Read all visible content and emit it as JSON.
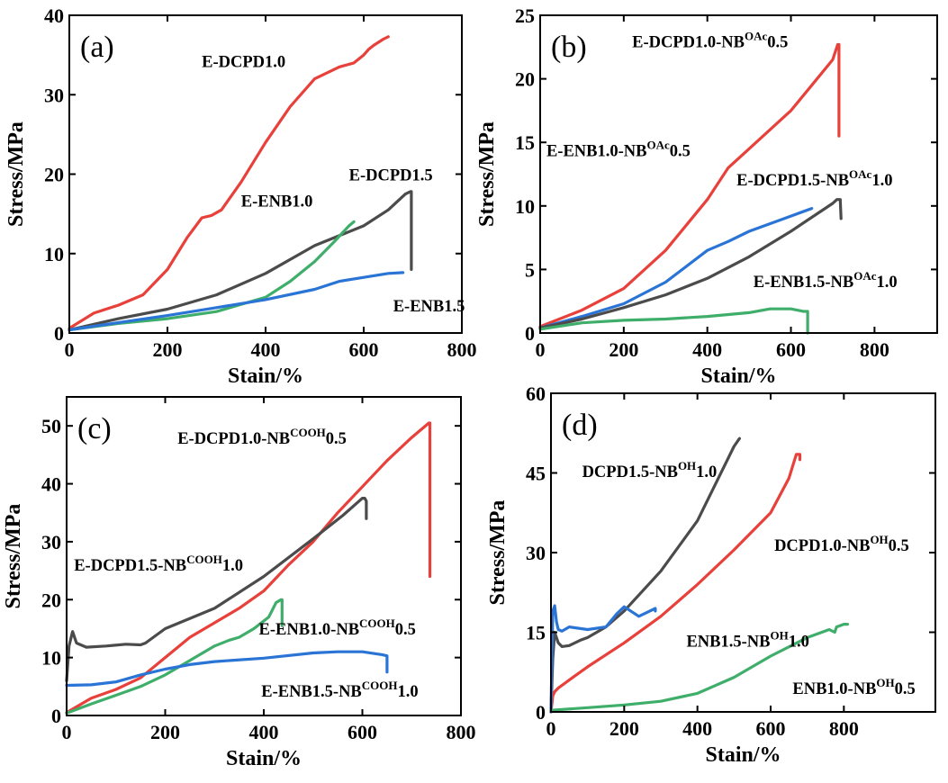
{
  "chart_data": [
    {
      "type": "line",
      "panel_label": "(a)",
      "xlabel": "Stain/%",
      "ylabel": "Stress/MPa",
      "xlim": [
        0,
        800
      ],
      "ylim": [
        0,
        40
      ],
      "xticks": [
        "0",
        "200",
        "400",
        "600",
        "800"
      ],
      "yticks": [
        "0",
        "10",
        "20",
        "30",
        "40"
      ],
      "grid": false,
      "series": [
        {
          "name": "E-DCPD1.0",
          "color": "#e8403a",
          "x": [
            0,
            50,
            100,
            150,
            200,
            240,
            270,
            290,
            310,
            350,
            400,
            450,
            500,
            550,
            580,
            600,
            610,
            620,
            640,
            650
          ],
          "y": [
            0.6,
            2.5,
            3.5,
            4.8,
            8,
            12,
            14.5,
            14.8,
            15.5,
            19,
            24,
            28.5,
            32,
            33.5,
            34,
            35,
            35.7,
            36.2,
            37,
            37.3
          ]
        },
        {
          "name": "E-DCPD1.5",
          "color": "#4b4b4b",
          "x": [
            0,
            100,
            200,
            300,
            400,
            500,
            600,
            650,
            685,
            695,
            697,
            697,
            697
          ],
          "y": [
            0.4,
            1.8,
            3,
            4.8,
            7.5,
            11,
            13.5,
            15.5,
            17.5,
            17.8,
            17.8,
            13,
            8
          ]
        },
        {
          "name": "E-ENB1.0",
          "color": "#3fae6a",
          "x": [
            0,
            100,
            200,
            300,
            400,
            450,
            500,
            540,
            570,
            580
          ],
          "y": [
            0.4,
            1.2,
            1.8,
            2.7,
            4.5,
            6.5,
            9,
            11.5,
            13.5,
            14
          ]
        },
        {
          "name": "E-ENB1.5",
          "color": "#2a74d6",
          "x": [
            0,
            100,
            200,
            300,
            400,
            500,
            550,
            600,
            650,
            680
          ],
          "y": [
            0.4,
            1.3,
            2.2,
            3.2,
            4.2,
            5.5,
            6.5,
            7,
            7.5,
            7.6
          ]
        }
      ],
      "annotations": [
        {
          "text": "E-DCPD1.0",
          "x": 270,
          "y": 33.5
        },
        {
          "text": "E-DCPD1.5",
          "x": 570,
          "y": 19.2
        },
        {
          "text": "E-ENB1.0",
          "x": 350,
          "y": 15.9
        },
        {
          "text": "E-ENB1.5",
          "x": 660,
          "y": 2.7
        }
      ]
    },
    {
      "type": "line",
      "panel_label": "(b)",
      "xlabel": "Stain/%",
      "ylabel": "Stress/MPa",
      "xlim": [
        0,
        950
      ],
      "ylim": [
        0,
        25
      ],
      "xticks": [
        "0",
        "200",
        "400",
        "600",
        "800"
      ],
      "yticks": [
        "0",
        "5",
        "10",
        "15",
        "20",
        "25"
      ],
      "grid": false,
      "series": [
        {
          "name": "E-DCPD1.0-NB^OAc0.5",
          "color": "#e8403a",
          "x": [
            0,
            100,
            200,
            300,
            400,
            450,
            500,
            600,
            650,
            700,
            712,
            715,
            715,
            715
          ],
          "y": [
            0.5,
            1.8,
            3.5,
            6.5,
            10.5,
            13,
            14.5,
            17.5,
            19.5,
            21.5,
            22.7,
            22.7,
            19,
            15.5
          ]
        },
        {
          "name": "E-ENB1.0-NB^OAc0.5",
          "color": "#2a74d6",
          "x": [
            0,
            100,
            200,
            300,
            400,
            450,
            500,
            600,
            650
          ],
          "y": [
            0.4,
            1.3,
            2.3,
            4,
            6.5,
            7.2,
            8,
            9.2,
            9.8
          ]
        },
        {
          "name": "E-DCPD1.5-NB^OAc1.0",
          "color": "#4b4b4b",
          "x": [
            0,
            100,
            200,
            300,
            400,
            500,
            600,
            700,
            710,
            718,
            720
          ],
          "y": [
            0.4,
            1.1,
            2,
            3,
            4.3,
            6,
            8,
            10.2,
            10.5,
            10.5,
            9
          ]
        },
        {
          "name": "E-ENB1.5-NB^OAc1.0",
          "color": "#3fae6a",
          "x": [
            0,
            100,
            200,
            300,
            400,
            500,
            550,
            600,
            630,
            640,
            640
          ],
          "y": [
            0.3,
            0.8,
            1,
            1.1,
            1.3,
            1.6,
            1.9,
            1.9,
            1.7,
            1.7,
            0
          ]
        }
      ],
      "annotations": [
        {
          "text": "E-DCPD1.0-NB",
          "sup": "OAc",
          "after": "0.5",
          "x": 220,
          "y": 22.5
        },
        {
          "text": "E-ENB1.0-NB",
          "sup": "OAc",
          "after": "0.5",
          "x": 15,
          "y": 13.9
        },
        {
          "text": "E-DCPD1.5-NB",
          "sup": "OAc",
          "after": "1.0",
          "x": 470,
          "y": 11.6
        },
        {
          "text": "E-ENB1.5-NB",
          "sup": "OAc",
          "after": "1.0",
          "x": 510,
          "y": 3.6
        }
      ]
    },
    {
      "type": "line",
      "panel_label": "(c)",
      "xlabel": "Stain/%",
      "ylabel": "Stress/MPa",
      "xlim": [
        0,
        800
      ],
      "ylim": [
        0,
        55
      ],
      "xticks": [
        "0",
        "200",
        "400",
        "600",
        "800"
      ],
      "yticks": [
        "0",
        "10",
        "20",
        "30",
        "40",
        "50"
      ],
      "grid": false,
      "series": [
        {
          "name": "E-DCPD1.0-NB^COOH0.5",
          "color": "#e8403a",
          "x": [
            0,
            50,
            100,
            150,
            200,
            250,
            300,
            350,
            400,
            450,
            500,
            550,
            600,
            650,
            700,
            735,
            737,
            737
          ],
          "y": [
            0.5,
            3,
            4.5,
            6.5,
            10,
            13.5,
            16,
            18.5,
            21.5,
            26,
            30,
            35,
            39.5,
            44,
            48,
            50.5,
            50.5,
            24
          ]
        },
        {
          "name": "E-DCPD1.5-NB^COOH1.0",
          "color": "#4b4b4b",
          "x": [
            0,
            5,
            12,
            20,
            40,
            80,
            120,
            150,
            160,
            200,
            300,
            400,
            500,
            560,
            600,
            605,
            608,
            608
          ],
          "y": [
            6,
            12,
            14.5,
            12.5,
            11.8,
            12,
            12.3,
            12.2,
            12.5,
            15,
            18.5,
            24,
            30.5,
            34.5,
            37.5,
            37.5,
            37,
            34
          ]
        },
        {
          "name": "E-ENB1.0-NB^COOH0.5",
          "color": "#3fae6a",
          "x": [
            0,
            50,
            100,
            150,
            200,
            250,
            300,
            330,
            350,
            380,
            410,
            425,
            435,
            437,
            437
          ],
          "y": [
            0.4,
            2,
            3.5,
            5,
            7,
            9.5,
            12,
            13,
            13.5,
            15,
            17,
            19.5,
            20,
            20,
            15.5
          ]
        },
        {
          "name": "E-ENB1.5-NB^COOH1.0",
          "color": "#2a74d6",
          "x": [
            0,
            50,
            100,
            150,
            200,
            250,
            300,
            400,
            500,
            550,
            600,
            640,
            650,
            650
          ],
          "y": [
            5.2,
            5.3,
            5.8,
            7,
            8,
            8.8,
            9.3,
            9.9,
            10.8,
            11,
            11,
            10.5,
            10.3,
            7.5
          ]
        }
      ],
      "annotations": [
        {
          "text": "E-DCPD1.0-NB",
          "sup": "COOH",
          "after": "0.5",
          "x": 225,
          "y": 46.9
        },
        {
          "text": "E-DCPD1.5-NB",
          "sup": "COOH",
          "after": "1.0",
          "x": 15,
          "y": 25
        },
        {
          "text": "E-ENB1.0-NB",
          "sup": "COOH",
          "after": "0.5",
          "x": 390,
          "y": 14
        },
        {
          "text": "E-ENB1.5-NB",
          "sup": "COOH",
          "after": "1.0",
          "x": 395,
          "y": 3.3
        }
      ]
    },
    {
      "type": "line",
      "panel_label": "(d)",
      "xlabel": "Stain/%",
      "ylabel": "Stress/MPa",
      "xlim": [
        0,
        1050
      ],
      "ylim": [
        0,
        60
      ],
      "xticks": [
        "0",
        "200",
        "400",
        "600",
        "800"
      ],
      "yticks": [
        "0",
        "15",
        "30",
        "45",
        "60"
      ],
      "grid": false,
      "series": [
        {
          "name": "DCPD1.5-NB^OH1.0",
          "color": "#4b4b4b",
          "x": [
            0,
            5,
            10,
            15,
            20,
            30,
            50,
            80,
            100,
            150,
            200,
            300,
            400,
            500,
            515
          ],
          "y": [
            0,
            10,
            15,
            14,
            13,
            12.3,
            12.5,
            13.5,
            14,
            16,
            19,
            26.5,
            36,
            50,
            51.5
          ]
        },
        {
          "name": "DCPD1.0-NB^OH0.5",
          "color": "#e8403a",
          "x": [
            0,
            5,
            10,
            20,
            40,
            60,
            100,
            200,
            300,
            400,
            500,
            600,
            650,
            670,
            680,
            680
          ],
          "y": [
            0,
            3,
            3.8,
            4.5,
            5.5,
            6.5,
            8.5,
            13,
            18,
            24,
            30.5,
            37.5,
            44,
            48.5,
            48.5,
            47.5
          ]
        },
        {
          "name": "ENB1.5-NB^OH1.0",
          "color": "#2a74d6",
          "x": [
            0,
            5,
            10,
            15,
            20,
            30,
            50,
            100,
            150,
            180,
            200,
            240,
            270,
            285,
            285
          ],
          "y": [
            0,
            19,
            20,
            17,
            15.5,
            15.2,
            16,
            15.5,
            16,
            18.5,
            19.8,
            18,
            19,
            19.5,
            19
          ]
        },
        {
          "name": "ENB1.0-NB^OH0.5",
          "color": "#3fae6a",
          "x": [
            0,
            100,
            200,
            300,
            400,
            500,
            600,
            700,
            760,
            775,
            780,
            800,
            810
          ],
          "y": [
            0.3,
            0.8,
            1.3,
            2,
            3.5,
            6.5,
            10.5,
            14,
            15.5,
            15,
            16,
            16.5,
            16.5
          ]
        }
      ],
      "annotations": [
        {
          "text": "DCPD1.5-NB",
          "sup": "OH",
          "after": "1.0",
          "x": 85,
          "y": 44.2
        },
        {
          "text": "DCPD1.0-NB",
          "sup": "OH",
          "after": "0.5",
          "x": 610,
          "y": 30.3
        },
        {
          "text": "ENB1.5-NB",
          "sup": "OH",
          "after": "1.0",
          "x": 370,
          "y": 12.3
        },
        {
          "text": "ENB1.0-NB",
          "sup": "OH",
          "after": "0.5",
          "x": 660,
          "y": 3.4
        }
      ]
    }
  ]
}
